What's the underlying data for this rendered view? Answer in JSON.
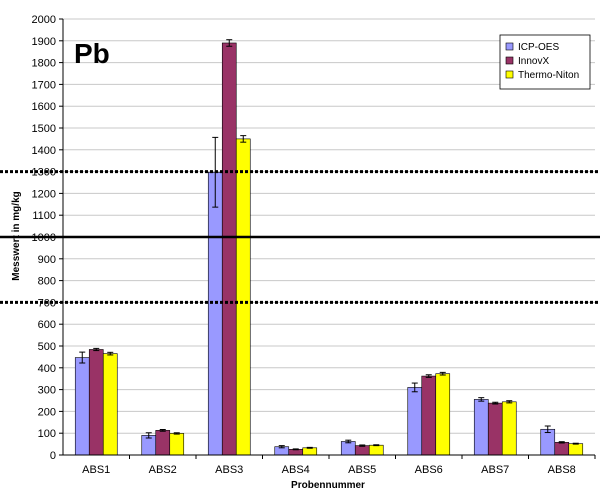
{
  "chart_data": {
    "type": "bar",
    "panel_label": "Pb",
    "xlabel": "Probennummer",
    "ylabel": "Messwert in mg/kg",
    "ylim": [
      0,
      2000
    ],
    "ytick_step": 100,
    "grid": true,
    "legend_position": "top-right",
    "categories": [
      "ABS1",
      "ABS2",
      "ABS3",
      "ABS4",
      "ABS5",
      "ABS6",
      "ABS7",
      "ABS8"
    ],
    "series": [
      {
        "name": "ICP-OES",
        "color": "#9999ff",
        "values": [
          447,
          90,
          1297,
          38,
          62,
          310,
          255,
          118
        ],
        "errors": [
          25,
          12,
          160,
          5,
          6,
          20,
          8,
          15
        ]
      },
      {
        "name": "InnovX",
        "color": "#993366",
        "values": [
          484,
          113,
          1890,
          26,
          43,
          362,
          238,
          58
        ],
        "errors": [
          5,
          4,
          15,
          2,
          3,
          6,
          4,
          3
        ]
      },
      {
        "name": "Thermo-Niton",
        "color": "#ffff00",
        "values": [
          465,
          99,
          1450,
          33,
          45,
          373,
          244,
          52
        ],
        "errors": [
          6,
          3,
          15,
          2,
          2,
          6,
          5,
          2
        ]
      }
    ],
    "reference_lines": [
      {
        "value": 1000,
        "style": "solid"
      },
      {
        "value": 1300,
        "style": "dotted"
      },
      {
        "value": 700,
        "style": "dotted"
      }
    ]
  }
}
